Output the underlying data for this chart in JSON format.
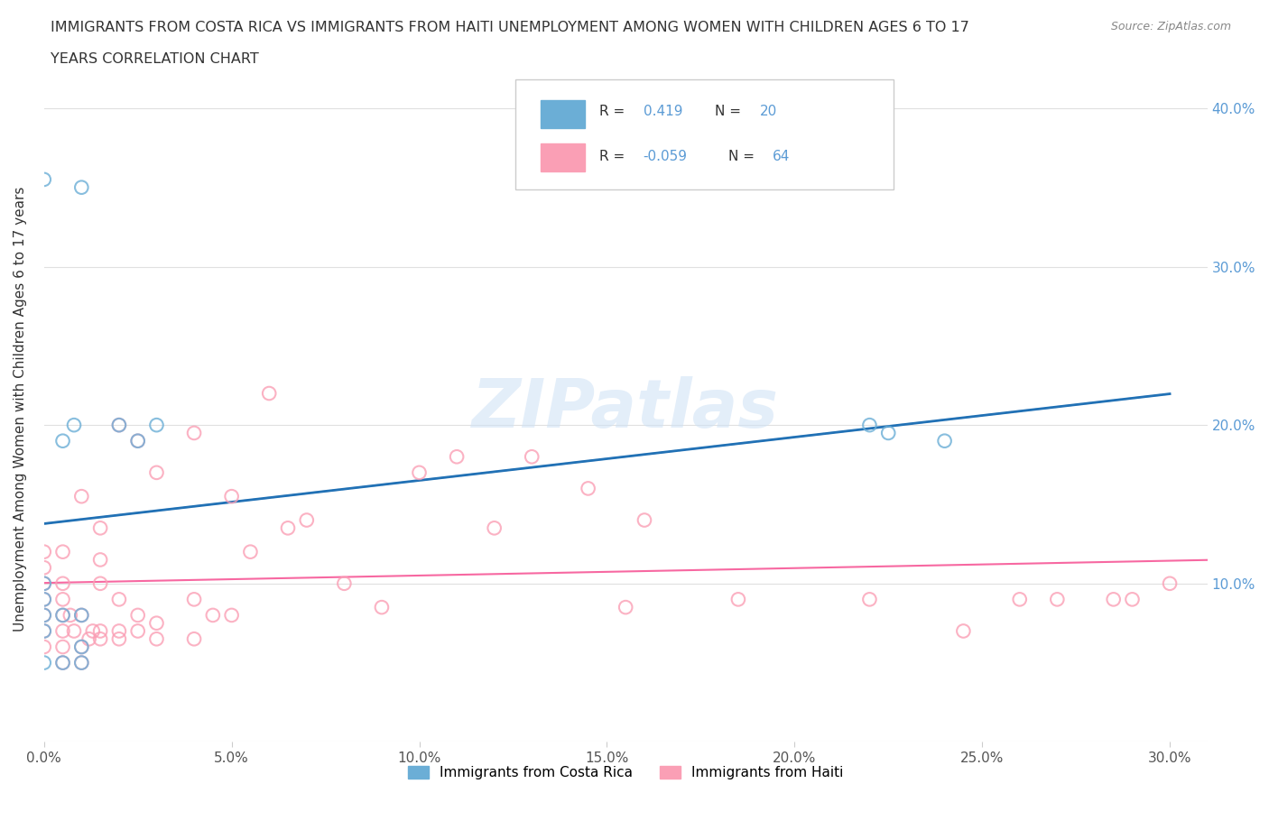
{
  "title_line1": "IMMIGRANTS FROM COSTA RICA VS IMMIGRANTS FROM HAITI UNEMPLOYMENT AMONG WOMEN WITH CHILDREN AGES 6 TO 17",
  "title_line2": "YEARS CORRELATION CHART",
  "source_text": "Source: ZipAtlas.com",
  "ylabel": "Unemployment Among Women with Children Ages 6 to 17 years",
  "watermark": "ZIPatlas",
  "color_costa_rica": "#6baed6",
  "color_haiti": "#fa9fb5",
  "line_color_costa_rica": "#2171b5",
  "line_color_haiti": "#f768a1",
  "trendline_cr_dashed": "#aec7e8",
  "xlim": [
    0.0,
    0.31
  ],
  "ylim": [
    0.0,
    0.42
  ],
  "xticks": [
    0.0,
    0.05,
    0.1,
    0.15,
    0.2,
    0.25,
    0.3
  ],
  "yticks_right": [
    0.1,
    0.2,
    0.3,
    0.4
  ],
  "ytick_labels_right": [
    "10.0%",
    "20.0%",
    "30.0%",
    "40.0%"
  ],
  "xtick_labels": [
    "0.0%",
    "5.0%",
    "10.0%",
    "15.0%",
    "20.0%",
    "25.0%",
    "30.0%"
  ],
  "costa_rica_x": [
    0.0,
    0.0,
    0.0,
    0.0,
    0.0,
    0.0,
    0.005,
    0.005,
    0.005,
    0.008,
    0.01,
    0.01,
    0.01,
    0.01,
    0.02,
    0.025,
    0.03,
    0.22,
    0.225,
    0.24
  ],
  "costa_rica_y": [
    0.05,
    0.07,
    0.08,
    0.09,
    0.1,
    0.355,
    0.05,
    0.08,
    0.19,
    0.2,
    0.05,
    0.06,
    0.08,
    0.35,
    0.2,
    0.19,
    0.2,
    0.2,
    0.195,
    0.19
  ],
  "haiti_x": [
    0.0,
    0.0,
    0.0,
    0.0,
    0.0,
    0.0,
    0.0,
    0.005,
    0.005,
    0.005,
    0.005,
    0.005,
    0.005,
    0.005,
    0.007,
    0.008,
    0.01,
    0.01,
    0.01,
    0.01,
    0.012,
    0.013,
    0.015,
    0.015,
    0.015,
    0.015,
    0.015,
    0.02,
    0.02,
    0.02,
    0.02,
    0.025,
    0.025,
    0.025,
    0.03,
    0.03,
    0.03,
    0.04,
    0.04,
    0.04,
    0.045,
    0.05,
    0.05,
    0.055,
    0.06,
    0.065,
    0.07,
    0.08,
    0.09,
    0.1,
    0.11,
    0.12,
    0.13,
    0.145,
    0.155,
    0.16,
    0.185,
    0.22,
    0.245,
    0.26,
    0.27,
    0.285,
    0.29,
    0.3
  ],
  "haiti_y": [
    0.06,
    0.07,
    0.08,
    0.09,
    0.1,
    0.11,
    0.12,
    0.05,
    0.06,
    0.07,
    0.08,
    0.09,
    0.1,
    0.12,
    0.08,
    0.07,
    0.05,
    0.06,
    0.08,
    0.155,
    0.065,
    0.07,
    0.065,
    0.07,
    0.1,
    0.115,
    0.135,
    0.065,
    0.07,
    0.09,
    0.2,
    0.07,
    0.08,
    0.19,
    0.065,
    0.075,
    0.17,
    0.065,
    0.09,
    0.195,
    0.08,
    0.08,
    0.155,
    0.12,
    0.22,
    0.135,
    0.14,
    0.1,
    0.085,
    0.17,
    0.18,
    0.135,
    0.18,
    0.16,
    0.085,
    0.14,
    0.09,
    0.09,
    0.07,
    0.09,
    0.09,
    0.09,
    0.09,
    0.1
  ],
  "background_color": "#ffffff",
  "grid_color": "#e0e0e0",
  "legend_label_cr": "Immigrants from Costa Rica",
  "legend_label_ht": "Immigrants from Haiti"
}
